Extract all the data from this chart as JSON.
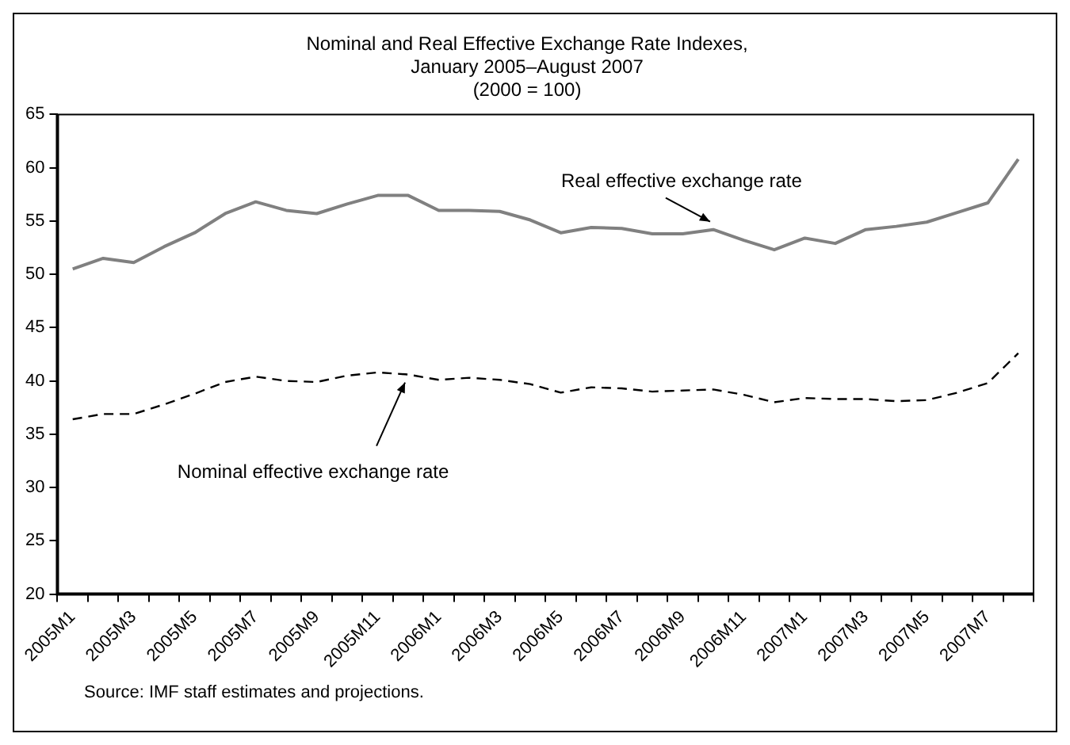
{
  "chart_data": {
    "type": "line",
    "title": "Nominal and Real Effective Exchange Rate Indexes,\nJanuary 2005–August 2007",
    "subtitle": "(2000 = 100)",
    "categories": [
      "2005M1",
      null,
      "2005M3",
      null,
      "2005M5",
      null,
      "2005M7",
      null,
      "2005M9",
      null,
      "2005M11",
      null,
      "2006M1",
      null,
      "2006M3",
      null,
      "2006M5",
      null,
      "2006M7",
      null,
      "2006M9",
      null,
      "2006M11",
      null,
      "2007M1",
      null,
      "2007M3",
      null,
      "2007M5",
      null,
      "2007M7",
      null
    ],
    "series": [
      {
        "name": "Real effective exchange rate",
        "color": "#808080",
        "line_style": "solid",
        "values": [
          50.5,
          51.5,
          51.1,
          52.6,
          53.9,
          55.7,
          56.8,
          56.0,
          55.7,
          56.6,
          57.4,
          57.4,
          56.0,
          56.0,
          55.9,
          55.1,
          53.9,
          54.4,
          54.3,
          53.8,
          53.8,
          54.2,
          53.2,
          52.3,
          53.4,
          52.9,
          54.2,
          54.5,
          54.9,
          55.8,
          56.7,
          60.8
        ]
      },
      {
        "name": "Nominal effective exchange rate",
        "color": "#000000",
        "line_style": "dashed",
        "values": [
          36.4,
          36.9,
          36.9,
          37.8,
          38.8,
          39.9,
          40.4,
          40.0,
          39.9,
          40.5,
          40.8,
          40.6,
          40.1,
          40.3,
          40.1,
          39.7,
          38.9,
          39.4,
          39.3,
          39.0,
          39.1,
          39.2,
          38.7,
          38.0,
          38.4,
          38.3,
          38.3,
          38.1,
          38.2,
          38.9,
          39.8,
          42.6
        ]
      }
    ],
    "ylim": [
      20,
      65
    ],
    "yticks": [
      20,
      25,
      30,
      35,
      40,
      45,
      50,
      55,
      60,
      65
    ],
    "grid": false,
    "legend": false,
    "marker": "none",
    "annotations": [
      "Source: IMF staff estimates and projections."
    ]
  }
}
